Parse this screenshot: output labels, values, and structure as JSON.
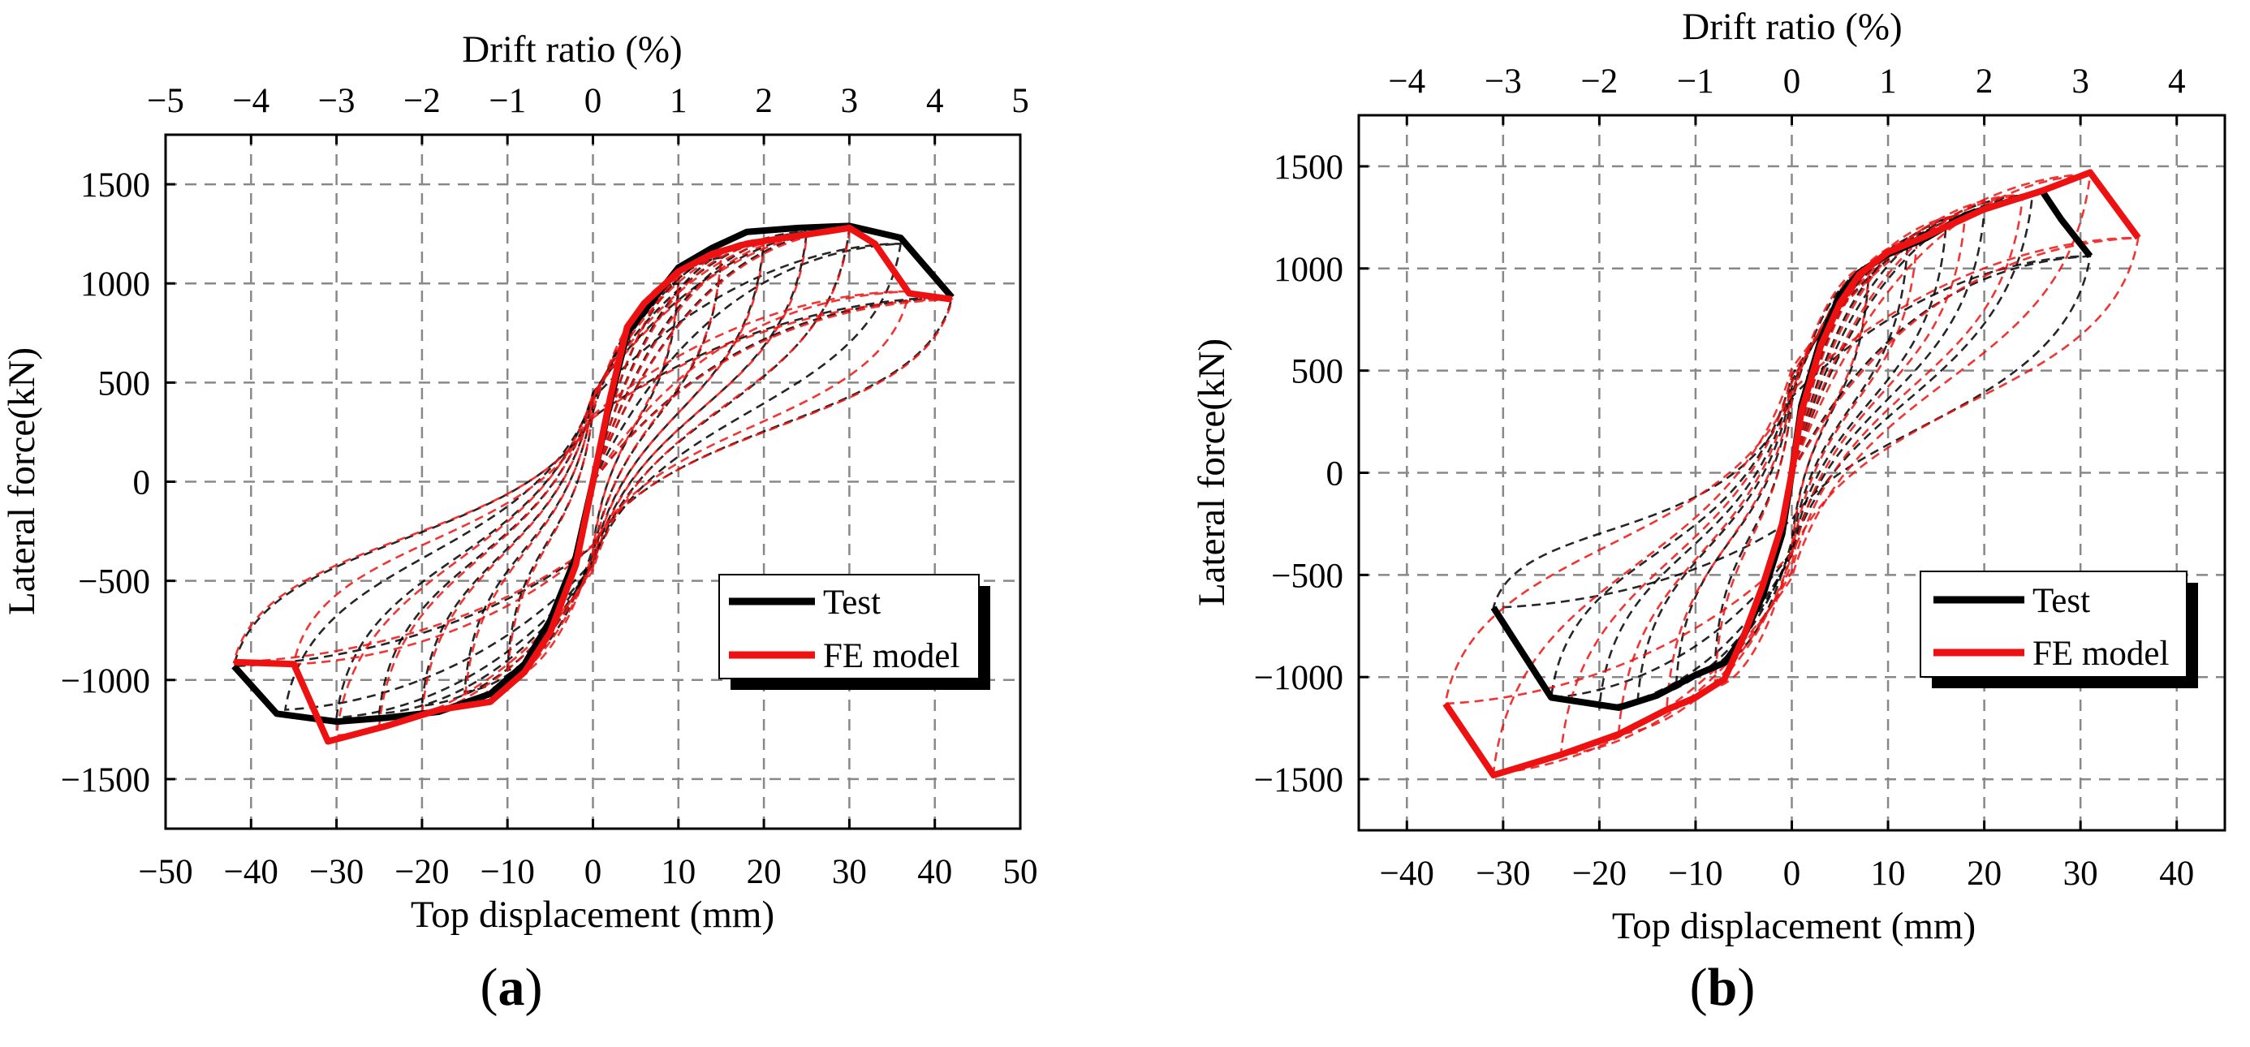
{
  "figure": {
    "panels": [
      {
        "label_open": "(",
        "label_letter": "a",
        "label_close": ")",
        "top_axis_title": "Drift ratio (%)",
        "x_axis_title": "Top displacement (mm)",
        "y_axis_title": "Lateral force(kN)",
        "legend": [
          "Test",
          "FE model"
        ]
      },
      {
        "label_open": "(",
        "label_letter": "b",
        "label_close": ")",
        "top_axis_title": "Drift ratio (%)",
        "x_axis_title": "Top displacement (mm)",
        "y_axis_title": "Lateral force(kN)",
        "legend": [
          "Test",
          "FE model"
        ]
      }
    ]
  },
  "chart_data": [
    {
      "type": "line",
      "title": "(a)",
      "xlabel": "Top displacement (mm)",
      "ylabel": "Lateral force(kN)",
      "x2label": "Drift ratio (%)",
      "xlim": [
        -50,
        50
      ],
      "ylim": [
        -1750,
        1750
      ],
      "x2lim": [
        -5,
        5
      ],
      "xticks": [
        -50,
        -40,
        -30,
        -20,
        -10,
        0,
        10,
        20,
        30,
        40,
        50
      ],
      "yticks": [
        -1500,
        -1000,
        -500,
        0,
        500,
        1000,
        1500
      ],
      "x2ticks": [
        -5,
        -4,
        -3,
        -2,
        -1,
        0,
        1,
        2,
        3,
        4,
        5
      ],
      "grid": true,
      "legend_position": "bottom-right",
      "colors": {
        "test": "#000000",
        "fe": "#ee1111"
      },
      "series": [
        {
          "name": "Test",
          "style": "solid",
          "x": [
            -42,
            -37,
            -30,
            -24,
            -18,
            -12,
            -8,
            -5,
            -2,
            0,
            2,
            4,
            6,
            10,
            14,
            18,
            24,
            30,
            36,
            42
          ],
          "y": [
            -930,
            -1170,
            -1210,
            -1190,
            -1160,
            -1070,
            -920,
            -700,
            -380,
            0,
            400,
            750,
            860,
            1080,
            1180,
            1260,
            1280,
            1290,
            1230,
            930
          ]
        },
        {
          "name": "FE model",
          "style": "solid",
          "x": [
            -42,
            -35,
            -31,
            -24,
            -18,
            -12,
            -8,
            -5,
            -2,
            0,
            2,
            4,
            6,
            10,
            14,
            18,
            24,
            30,
            33,
            37,
            42
          ],
          "y": [
            -910,
            -920,
            -1310,
            -1230,
            -1150,
            -1110,
            -960,
            -760,
            -420,
            0,
            420,
            780,
            900,
            1060,
            1150,
            1200,
            1240,
            1280,
            1200,
            950,
            920
          ]
        }
      ],
      "hysteresis_loops_test": [
        {
          "amp_pos": 10,
          "f_pos": 1000,
          "amp_neg": -10,
          "f_neg": -950
        },
        {
          "amp_pos": 15,
          "f_pos": 1130,
          "amp_neg": -15,
          "f_neg": -1060
        },
        {
          "amp_pos": 20,
          "f_pos": 1220,
          "amp_neg": -20,
          "f_neg": -1130
        },
        {
          "amp_pos": 25,
          "f_pos": 1260,
          "amp_neg": -25,
          "f_neg": -1170
        },
        {
          "amp_pos": 30,
          "f_pos": 1280,
          "amp_neg": -30,
          "f_neg": -1190
        },
        {
          "amp_pos": 36,
          "f_pos": 1200,
          "amp_neg": -36,
          "f_neg": -1150
        },
        {
          "amp_pos": 42,
          "f_pos": 930,
          "amp_neg": -42,
          "f_neg": -930
        }
      ],
      "hysteresis_loops_fe": [
        {
          "amp_pos": 10,
          "f_pos": 1020,
          "amp_neg": -10,
          "f_neg": -1000
        },
        {
          "amp_pos": 15,
          "f_pos": 1140,
          "amp_neg": -15,
          "f_neg": -1120
        },
        {
          "amp_pos": 20,
          "f_pos": 1200,
          "amp_neg": -20,
          "f_neg": -1180
        },
        {
          "amp_pos": 25,
          "f_pos": 1240,
          "amp_neg": -25,
          "f_neg": -1230
        },
        {
          "amp_pos": 30,
          "f_pos": 1270,
          "amp_neg": -30,
          "f_neg": -1280
        },
        {
          "amp_pos": 37,
          "f_pos": 960,
          "amp_neg": -35,
          "f_neg": -920
        },
        {
          "amp_pos": 42,
          "f_pos": 920,
          "amp_neg": -42,
          "f_neg": -910
        }
      ]
    },
    {
      "type": "line",
      "title": "(b)",
      "xlabel": "Top displacement (mm)",
      "ylabel": "Lateral force(kN)",
      "x2label": "Drift ratio (%)",
      "xlim": [
        -45,
        45
      ],
      "ylim": [
        -1750,
        1750
      ],
      "x2lim": [
        -4.5,
        4.5
      ],
      "xticks": [
        -40,
        -30,
        -20,
        -10,
        0,
        10,
        20,
        30,
        40
      ],
      "yticks": [
        -1500,
        -1000,
        -500,
        0,
        500,
        1000,
        1500
      ],
      "x2ticks": [
        -4,
        -3,
        -2,
        -1,
        0,
        1,
        2,
        3,
        4
      ],
      "grid": true,
      "legend_position": "bottom-right",
      "colors": {
        "test": "#000000",
        "fe": "#ee1111"
      },
      "series": [
        {
          "name": "Test",
          "style": "solid",
          "x": [
            -31,
            -25,
            -18,
            -14,
            -10,
            -7,
            -5,
            -3,
            -1,
            0,
            1,
            3,
            5,
            7,
            10,
            14,
            18,
            22,
            26,
            28,
            31
          ],
          "y": [
            -660,
            -1100,
            -1150,
            -1090,
            -990,
            -930,
            -800,
            -600,
            -300,
            0,
            330,
            650,
            870,
            980,
            1070,
            1150,
            1260,
            1320,
            1380,
            1240,
            1060
          ]
        },
        {
          "name": "FE model",
          "style": "solid",
          "x": [
            -36,
            -31,
            -24,
            -18,
            -13,
            -10,
            -7,
            -5,
            -3,
            -1,
            0,
            1,
            3,
            5,
            7,
            10,
            14,
            20,
            26,
            31,
            36
          ],
          "y": [
            -1130,
            -1480,
            -1380,
            -1280,
            -1160,
            -1100,
            -1010,
            -800,
            -550,
            -250,
            0,
            300,
            620,
            830,
            970,
            1080,
            1160,
            1290,
            1380,
            1470,
            1150
          ]
        }
      ],
      "hysteresis_loops_test": [
        {
          "amp_pos": 8,
          "f_pos": 990,
          "amp_neg": -8,
          "f_neg": -950
        },
        {
          "amp_pos": 12,
          "f_pos": 1100,
          "amp_neg": -12,
          "f_neg": -1030
        },
        {
          "amp_pos": 16,
          "f_pos": 1200,
          "amp_neg": -16,
          "f_neg": -1110
        },
        {
          "amp_pos": 20,
          "f_pos": 1280,
          "amp_neg": -20,
          "f_neg": -1150
        },
        {
          "amp_pos": 25,
          "f_pos": 1360,
          "amp_neg": -25,
          "f_neg": -1100
        },
        {
          "amp_pos": 31,
          "f_pos": 1060,
          "amp_neg": -31,
          "f_neg": -660
        }
      ],
      "hysteresis_loops_fe": [
        {
          "amp_pos": 8,
          "f_pos": 1010,
          "amp_neg": -8,
          "f_neg": -1050
        },
        {
          "amp_pos": 13,
          "f_pos": 1140,
          "amp_neg": -13,
          "f_neg": -1160
        },
        {
          "amp_pos": 18,
          "f_pos": 1260,
          "amp_neg": -18,
          "f_neg": -1280
        },
        {
          "amp_pos": 24,
          "f_pos": 1360,
          "amp_neg": -24,
          "f_neg": -1380
        },
        {
          "amp_pos": 31,
          "f_pos": 1460,
          "amp_neg": -31,
          "f_neg": -1470
        },
        {
          "amp_pos": 36,
          "f_pos": 1150,
          "amp_neg": -36,
          "f_neg": -1130
        }
      ]
    }
  ]
}
